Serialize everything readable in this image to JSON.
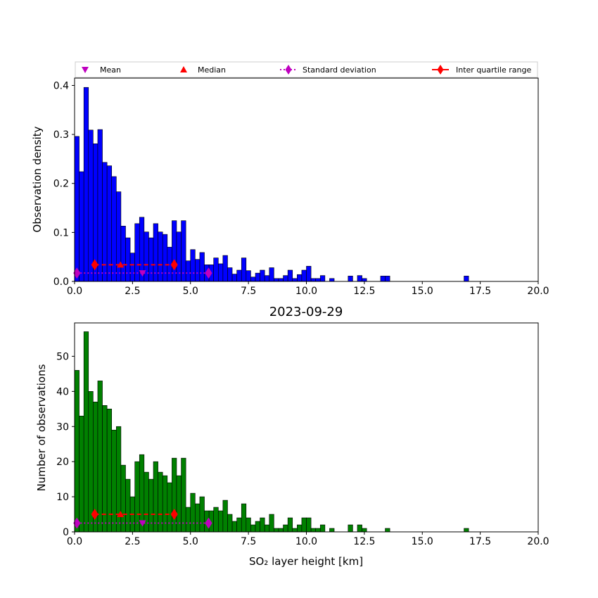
{
  "chart_data": [
    {
      "type": "bar",
      "panel": "top",
      "xlabel": "",
      "ylabel": "Observation density",
      "xlim": [
        0,
        20
      ],
      "ylim": [
        0,
        0.415
      ],
      "xticks": [
        0.0,
        2.5,
        5.0,
        7.5,
        10.0,
        12.5,
        15.0,
        17.5,
        20.0
      ],
      "xtick_labels": [
        "0.0",
        "2.5",
        "5.0",
        "7.5",
        "10.0",
        "12.5",
        "15.0",
        "17.5",
        "20.0"
      ],
      "yticks": [
        0.0,
        0.1,
        0.2,
        0.3,
        0.4
      ],
      "ytick_labels": [
        "0.0",
        "0.1",
        "0.2",
        "0.3",
        "0.4"
      ],
      "grid": false,
      "bin_width": 0.2,
      "bin_start": 0.0,
      "bar_color": "#0000ff",
      "values": [
        0.296,
        0.224,
        0.396,
        0.309,
        0.281,
        0.31,
        0.243,
        0.236,
        0.214,
        0.183,
        0.113,
        0.089,
        0.058,
        0.118,
        0.131,
        0.101,
        0.089,
        0.118,
        0.101,
        0.096,
        0.07,
        0.124,
        0.101,
        0.124,
        0.042,
        0.065,
        0.045,
        0.059,
        0.034,
        0.034,
        0.048,
        0.036,
        0.053,
        0.028,
        0.015,
        0.023,
        0.048,
        0.022,
        0.009,
        0.017,
        0.023,
        0.012,
        0.028,
        0.006,
        0.006,
        0.012,
        0.023,
        0.006,
        0.014,
        0.023,
        0.031,
        0.006,
        0.006,
        0.012,
        0,
        0.006,
        0,
        0,
        0,
        0.011,
        0,
        0.012,
        0.006,
        0,
        0,
        0,
        0,
        0.011,
        0,
        0,
        0,
        0,
        0,
        0,
        0,
        0,
        0,
        0,
        0,
        0,
        0,
        0,
        0,
        0,
        0,
        0,
        0,
        0,
        0,
        0,
        0,
        0,
        0,
        0,
        0,
        0,
        0,
        0,
        0,
        0,
        0,
        0,
        0,
        0,
        0,
        0,
        0,
        0,
        0,
        0,
        0,
        0,
        0,
        0,
        0,
        0,
        0,
        0,
        0,
        0,
        0,
        0,
        0,
        0,
        0,
        0,
        0,
        0,
        0,
        0,
        0,
        0,
        0,
        0,
        0,
        0,
        0,
        0,
        0,
        0,
        0,
        0,
        0,
        0,
        0,
        0,
        0,
        0,
        0,
        0,
        0,
        0,
        0,
        0,
        0,
        0,
        0,
        0,
        0,
        0,
        0,
        0,
        0,
        0,
        0,
        0,
        0,
        0,
        0,
        0,
        0,
        0,
        0,
        0,
        0,
        0,
        0,
        0,
        0,
        0,
        0,
        0,
        0,
        0,
        0,
        0,
        0,
        0,
        0,
        0,
        0,
        0,
        0,
        0,
        0,
        0,
        0,
        0,
        0,
        0,
        0,
        0,
        0,
        0,
        0,
        0,
        0,
        0,
        0,
        0,
        0,
        0,
        0,
        0,
        0,
        0,
        0,
        0,
        0,
        0
      ],
      "isolated_bars": [
        {
          "x": 16.8,
          "value": 0.011
        },
        {
          "x": 13.2,
          "value": 0.011
        }
      ],
      "stats": {
        "mean": 2.93,
        "median": 1.98,
        "std_range": [
          0.1,
          5.78
        ],
        "iqr_range": [
          0.87,
          4.3
        ],
        "mean_y": 0.017,
        "median_y": 0.034,
        "std_y": 0.017,
        "iqr_y": 0.034
      }
    },
    {
      "type": "bar",
      "panel": "bottom",
      "title": "2023-09-29",
      "xlabel": "SO₂ layer height [km]",
      "ylabel": "Number of observations",
      "xlim": [
        0,
        20
      ],
      "ylim": [
        0,
        59.5
      ],
      "xticks": [
        0.0,
        2.5,
        5.0,
        7.5,
        10.0,
        12.5,
        15.0,
        17.5,
        20.0
      ],
      "xtick_labels": [
        "0.0",
        "2.5",
        "5.0",
        "7.5",
        "10.0",
        "12.5",
        "15.0",
        "17.5",
        "20.0"
      ],
      "yticks": [
        0,
        10,
        20,
        30,
        40,
        50
      ],
      "ytick_labels": [
        "0",
        "10",
        "20",
        "30",
        "40",
        "50"
      ],
      "grid": false,
      "bin_width": 0.2,
      "bin_start": 0.0,
      "bar_color": "#008000",
      "values": [
        46,
        33,
        57,
        40,
        37,
        43,
        36,
        35,
        29,
        30,
        19,
        15,
        10,
        20,
        22,
        17,
        15,
        20,
        17,
        16,
        14,
        21,
        16,
        21,
        7,
        11,
        8,
        10,
        6,
        6,
        7,
        6,
        9,
        5,
        3,
        4,
        8,
        4,
        2,
        3,
        4,
        2,
        5,
        1,
        1,
        2,
        4,
        1,
        2,
        4,
        4,
        1,
        1,
        2,
        0,
        1,
        0,
        0,
        0,
        2,
        0,
        2,
        1,
        0,
        0,
        0,
        0,
        1
      ],
      "isolated_bars": [
        {
          "x": 16.8,
          "value": 1
        }
      ],
      "stats": {
        "mean": 2.93,
        "median": 1.98,
        "std_range": [
          0.1,
          5.78
        ],
        "iqr_range": [
          0.87,
          4.3
        ],
        "mean_y": 2.5,
        "median_y": 5,
        "std_y": 2.5,
        "iqr_y": 5
      }
    }
  ],
  "legend": {
    "placement": "top",
    "entries": [
      {
        "label": "Mean",
        "marker": "triangle-down",
        "color": "#bf00bf"
      },
      {
        "label": "Median",
        "marker": "triangle-up",
        "color": "#ff0000"
      },
      {
        "label": "Standard deviation",
        "marker": "diamond-dotted-line",
        "color": "#bf00bf"
      },
      {
        "label": "Inter quartile range",
        "marker": "diamond-solid-line",
        "color": "#ff0000"
      }
    ]
  }
}
